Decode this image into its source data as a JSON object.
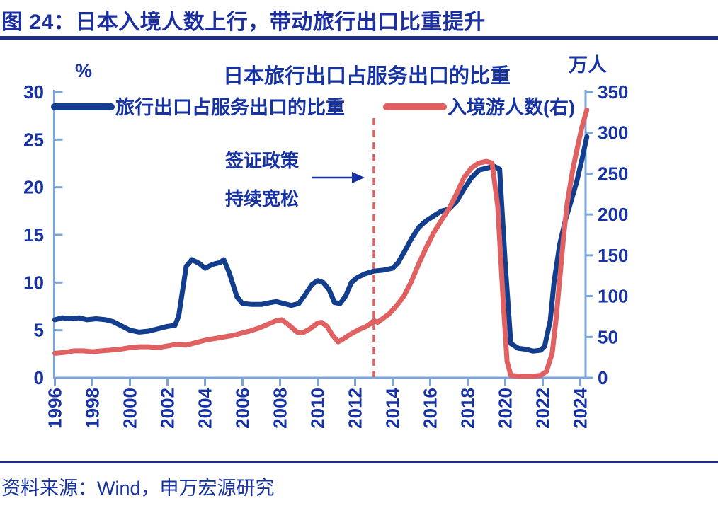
{
  "header": {
    "title": "图 24：日本入境人数上行，带动旅行出口比重提升"
  },
  "footer": {
    "source": "资料来源：Wind，申万宏源研究"
  },
  "chart_data": {
    "type": "line",
    "title": "日本旅行出口占服务出口的比重",
    "legend_position": "top",
    "grid": false,
    "colors": {
      "text": "#1733A3",
      "axis": "#7BA4DA",
      "series_share": "#123E8D",
      "series_visitors": "#E06161",
      "event_line": "#E06161"
    },
    "left_axis": {
      "unit": "%",
      "min": 0,
      "max": 30,
      "ticks": [
        0,
        5,
        10,
        15,
        20,
        25,
        30
      ]
    },
    "right_axis": {
      "unit": "万人",
      "min": 0,
      "max": 350,
      "ticks": [
        0,
        50,
        100,
        150,
        200,
        250,
        300,
        350
      ]
    },
    "x_axis": {
      "start": 1996,
      "end": 2024.4,
      "tick_years": [
        1996,
        1998,
        2000,
        2002,
        2004,
        2006,
        2008,
        2010,
        2012,
        2014,
        2016,
        2018,
        2020,
        2022,
        2024
      ]
    },
    "annotation": {
      "text_line1": "签证政策",
      "text_line2": "持续宽松",
      "event_year": 2013
    },
    "series": [
      {
        "name": "旅行出口占服务出口的比重",
        "axis": "left",
        "color": "#123E8D",
        "points": [
          [
            1996.0,
            6.1
          ],
          [
            1996.4,
            6.3
          ],
          [
            1996.8,
            6.2
          ],
          [
            1997.3,
            6.3
          ],
          [
            1997.7,
            6.1
          ],
          [
            1998.2,
            6.2
          ],
          [
            1998.7,
            6.1
          ],
          [
            1999.1,
            5.9
          ],
          [
            1999.6,
            5.4
          ],
          [
            2000.0,
            5.0
          ],
          [
            2000.5,
            4.8
          ],
          [
            2001.0,
            4.9
          ],
          [
            2001.6,
            5.2
          ],
          [
            2002.0,
            5.4
          ],
          [
            2002.4,
            5.5
          ],
          [
            2002.6,
            6.5
          ],
          [
            2003.0,
            11.7
          ],
          [
            2003.3,
            12.4
          ],
          [
            2003.7,
            12.0
          ],
          [
            2004.0,
            11.5
          ],
          [
            2004.4,
            11.9
          ],
          [
            2004.8,
            12.1
          ],
          [
            2005.0,
            12.4
          ],
          [
            2005.3,
            11.0
          ],
          [
            2005.7,
            8.5
          ],
          [
            2006.0,
            7.8
          ],
          [
            2006.5,
            7.7
          ],
          [
            2007.0,
            7.7
          ],
          [
            2007.5,
            7.9
          ],
          [
            2007.8,
            8.0
          ],
          [
            2008.2,
            7.8
          ],
          [
            2008.6,
            7.6
          ],
          [
            2009.0,
            7.8
          ],
          [
            2009.3,
            8.6
          ],
          [
            2009.7,
            9.8
          ],
          [
            2010.0,
            10.2
          ],
          [
            2010.3,
            10.0
          ],
          [
            2010.6,
            9.3
          ],
          [
            2010.9,
            7.9
          ],
          [
            2011.2,
            7.8
          ],
          [
            2011.5,
            8.6
          ],
          [
            2011.8,
            10.0
          ],
          [
            2012.1,
            10.5
          ],
          [
            2012.5,
            10.9
          ],
          [
            2013.0,
            11.2
          ],
          [
            2013.5,
            11.3
          ],
          [
            2014.0,
            11.5
          ],
          [
            2014.3,
            12.1
          ],
          [
            2014.7,
            13.5
          ],
          [
            2015.0,
            14.6
          ],
          [
            2015.4,
            15.8
          ],
          [
            2015.8,
            16.5
          ],
          [
            2016.2,
            17.0
          ],
          [
            2016.6,
            17.5
          ],
          [
            2017.0,
            17.7
          ],
          [
            2017.4,
            18.5
          ],
          [
            2017.8,
            19.8
          ],
          [
            2018.2,
            21.0
          ],
          [
            2018.6,
            21.8
          ],
          [
            2019.0,
            22.0
          ],
          [
            2019.4,
            22.2
          ],
          [
            2019.7,
            21.9
          ],
          [
            2020.0,
            12.0
          ],
          [
            2020.3,
            3.6
          ],
          [
            2020.7,
            3.1
          ],
          [
            2021.1,
            3.0
          ],
          [
            2021.5,
            2.8
          ],
          [
            2021.9,
            2.9
          ],
          [
            2022.1,
            3.3
          ],
          [
            2022.4,
            6.0
          ],
          [
            2022.6,
            10.0
          ],
          [
            2022.9,
            14.0
          ],
          [
            2023.2,
            16.5
          ],
          [
            2023.5,
            18.5
          ],
          [
            2023.8,
            20.5
          ],
          [
            2024.1,
            23.0
          ],
          [
            2024.35,
            25.3
          ]
        ]
      },
      {
        "name": "入境游人数(右)",
        "axis": "right",
        "color": "#E06161",
        "points": [
          [
            1996.0,
            30
          ],
          [
            1996.5,
            31
          ],
          [
            1997.0,
            33
          ],
          [
            1997.5,
            33
          ],
          [
            1998.0,
            32
          ],
          [
            1998.5,
            33
          ],
          [
            1999.0,
            34
          ],
          [
            1999.5,
            35
          ],
          [
            2000.0,
            37
          ],
          [
            2000.5,
            38
          ],
          [
            2001.0,
            38
          ],
          [
            2001.5,
            37
          ],
          [
            2002.0,
            39
          ],
          [
            2002.5,
            41
          ],
          [
            2003.0,
            40
          ],
          [
            2003.5,
            43
          ],
          [
            2004.0,
            46
          ],
          [
            2004.5,
            48
          ],
          [
            2005.0,
            50
          ],
          [
            2005.5,
            52
          ],
          [
            2006.0,
            55
          ],
          [
            2006.5,
            58
          ],
          [
            2007.0,
            62
          ],
          [
            2007.4,
            66
          ],
          [
            2007.8,
            70
          ],
          [
            2008.1,
            71
          ],
          [
            2008.5,
            64
          ],
          [
            2008.9,
            56
          ],
          [
            2009.2,
            55
          ],
          [
            2009.6,
            60
          ],
          [
            2010.0,
            67
          ],
          [
            2010.2,
            68
          ],
          [
            2010.5,
            63
          ],
          [
            2010.8,
            52
          ],
          [
            2011.1,
            44
          ],
          [
            2011.4,
            48
          ],
          [
            2011.8,
            54
          ],
          [
            2012.2,
            59
          ],
          [
            2012.6,
            63
          ],
          [
            2012.8,
            66
          ],
          [
            2013.0,
            70
          ],
          [
            2013.2,
            68
          ],
          [
            2013.5,
            73
          ],
          [
            2013.8,
            78
          ],
          [
            2014.2,
            88
          ],
          [
            2014.6,
            100
          ],
          [
            2015.0,
            118
          ],
          [
            2015.4,
            140
          ],
          [
            2015.8,
            160
          ],
          [
            2016.2,
            178
          ],
          [
            2016.6,
            193
          ],
          [
            2017.0,
            207
          ],
          [
            2017.4,
            225
          ],
          [
            2017.8,
            245
          ],
          [
            2018.2,
            257
          ],
          [
            2018.6,
            263
          ],
          [
            2019.0,
            265
          ],
          [
            2019.3,
            263
          ],
          [
            2019.6,
            210
          ],
          [
            2019.9,
            90
          ],
          [
            2020.1,
            20
          ],
          [
            2020.3,
            3
          ],
          [
            2020.7,
            2
          ],
          [
            2021.1,
            2
          ],
          [
            2021.5,
            2
          ],
          [
            2021.9,
            3
          ],
          [
            2022.2,
            8
          ],
          [
            2022.5,
            30
          ],
          [
            2022.7,
            70
          ],
          [
            2022.9,
            120
          ],
          [
            2023.1,
            170
          ],
          [
            2023.3,
            213
          ],
          [
            2023.6,
            255
          ],
          [
            2023.9,
            288
          ],
          [
            2024.1,
            308
          ],
          [
            2024.35,
            328
          ]
        ]
      }
    ]
  }
}
